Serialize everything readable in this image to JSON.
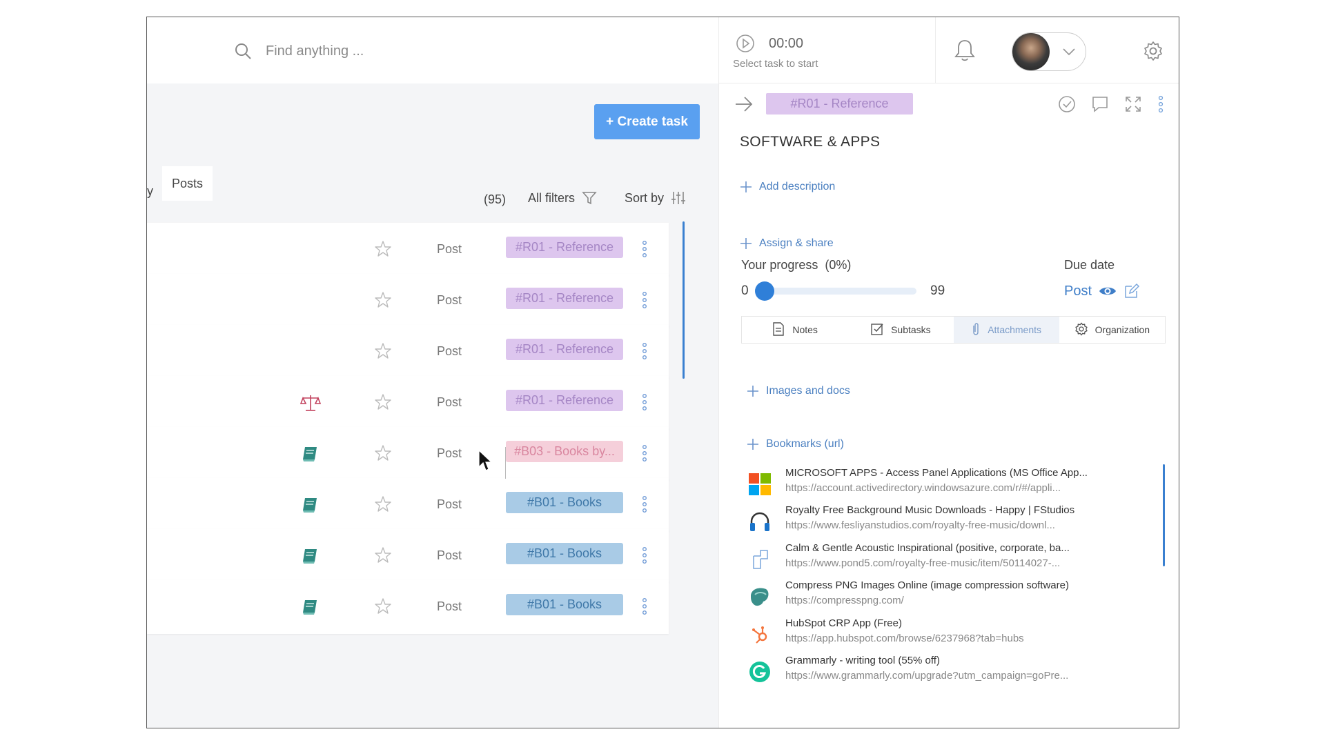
{
  "search": {
    "placeholder": "Find anything ..."
  },
  "toolbar": {
    "create_label": "+ Create task"
  },
  "tabs": {
    "cut_label": "y",
    "posts_label": "Posts"
  },
  "list_controls": {
    "count": "(95)",
    "filters_label": "All filters",
    "sort_label": "Sort by"
  },
  "rows": [
    {
      "type": "Post",
      "tag": "#R01 - Reference",
      "tag_style": "ref",
      "category_icon": ""
    },
    {
      "type": "Post",
      "tag": "#R01 - Reference",
      "tag_style": "ref",
      "category_icon": ""
    },
    {
      "type": "Post",
      "tag": "#R01 - Reference",
      "tag_style": "ref",
      "category_icon": ""
    },
    {
      "type": "Post",
      "tag": "#R01 - Reference",
      "tag_style": "ref",
      "category_icon": "scales-icon"
    },
    {
      "type": "Post",
      "tag": "#B03 - Books by...",
      "tag_style": "b03",
      "category_icon": "book-icon"
    },
    {
      "type": "Post",
      "tag": "#B01 - Books",
      "tag_style": "b01",
      "category_icon": "book-icon"
    },
    {
      "type": "Post",
      "tag": "#B01 - Books",
      "tag_style": "b01",
      "category_icon": "book-icon"
    },
    {
      "type": "Post",
      "tag": "#B01 - Books",
      "tag_style": "b01",
      "category_icon": "book-icon"
    }
  ],
  "timer": {
    "time": "00:00",
    "hint": "Select task to start"
  },
  "detail": {
    "tag": "#R01 - Reference",
    "title": "SOFTWARE & APPS",
    "add_description": "Add description",
    "assign_share": "Assign & share",
    "progress_label": "Your progress",
    "progress_pct": "(0%)",
    "progress_value": 0,
    "progress_min": "0",
    "progress_max": "99",
    "due_label": "Due date",
    "due_value": "Post"
  },
  "subtabs": [
    {
      "label": "Notes",
      "icon": "note-icon"
    },
    {
      "label": "Subtasks",
      "icon": "checkbox-icon"
    },
    {
      "label": "Attachments",
      "icon": "paperclip-icon",
      "active": true
    },
    {
      "label": "Organization",
      "icon": "gear-icon"
    }
  ],
  "attachments": {
    "images_docs": "Images and docs",
    "bookmarks_label": "Bookmarks (url)"
  },
  "bookmarks": [
    {
      "title": "MICROSOFT APPS - Access Panel Applications (MS Office App...",
      "url": "https://account.activedirectory.windowsazure.com/r/#/appli...",
      "icon": "microsoft-logo-icon"
    },
    {
      "title": "Royalty Free Background Music Downloads - Happy | FStudios",
      "url": "https://www.fesliyanstudios.com/royalty-free-music/downl...",
      "icon": "headphones-icon"
    },
    {
      "title": "Calm & Gentle Acoustic Inspirational (positive, corporate, ba...",
      "url": "https://www.pond5.com/royalty-free-music/item/50114027-...",
      "icon": "pond5-logo-icon"
    },
    {
      "title": "Compress PNG Images Online (image compression software)",
      "url": "https://compresspng.com/",
      "icon": "compresspng-logo-icon"
    },
    {
      "title": "HubSpot CRP App (Free)",
      "url": "https://app.hubspot.com/browse/6237968?tab=hubs",
      "icon": "hubspot-logo-icon"
    },
    {
      "title": "Grammarly - writing tool (55% off)",
      "url": "https://www.grammarly.com/upgrade?utm_campaign=goPre...",
      "icon": "grammarly-logo-icon"
    }
  ],
  "colors": {
    "accent": "#5aa0f0",
    "link": "#4a7fc0",
    "tag_ref_bg": "#ddc6ee",
    "tag_b01_bg": "#a9cbe6",
    "tag_b03_bg": "#f5cfda"
  }
}
